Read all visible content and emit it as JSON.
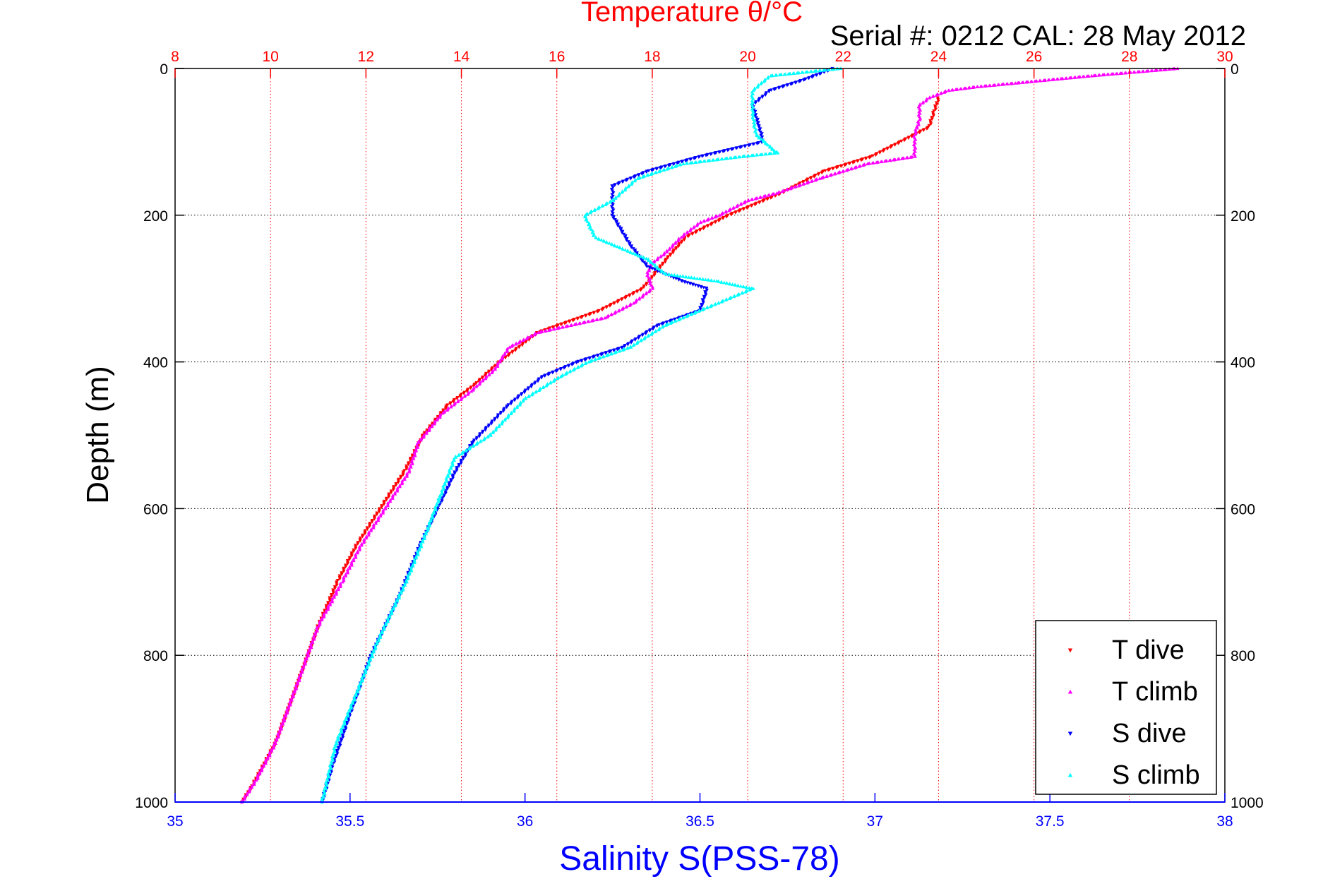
{
  "chart_data": {
    "type": "scatter",
    "title": "Temperature θ/°C",
    "subtitle": "Serial #: 0212  CAL: 28 May 2012",
    "xlabel": "Salinity S(PSS-78)",
    "ylabel": "Depth (m)",
    "x_salinity_lim": [
      35,
      38
    ],
    "x_temperature_lim": [
      8,
      30
    ],
    "ylim": [
      0,
      1000
    ],
    "y_reversed": true,
    "salinity_ticks": [
      "35",
      "35.5",
      "36",
      "36.5",
      "37",
      "37.5",
      "38"
    ],
    "temperature_ticks": [
      "8",
      "10",
      "12",
      "14",
      "16",
      "18",
      "20",
      "22",
      "24",
      "26",
      "28",
      "30"
    ],
    "depth_ticks": [
      "0",
      "200",
      "400",
      "600",
      "800",
      "1000"
    ],
    "grid": true,
    "legend_position": "bottom-right",
    "series": [
      {
        "name": "T dive",
        "axis": "temperature",
        "color": "#ff0000",
        "marker": "triangle-down",
        "points": [
          [
            24.0,
            40
          ],
          [
            23.9,
            60
          ],
          [
            23.8,
            80
          ],
          [
            23.2,
            100
          ],
          [
            22.6,
            120
          ],
          [
            21.6,
            140
          ],
          [
            20.7,
            170
          ],
          [
            19.6,
            200
          ],
          [
            18.7,
            230
          ],
          [
            18.3,
            260
          ],
          [
            17.8,
            300
          ],
          [
            16.9,
            330
          ],
          [
            15.6,
            360
          ],
          [
            14.8,
            400
          ],
          [
            14.3,
            430
          ],
          [
            13.7,
            460
          ],
          [
            13.2,
            500
          ],
          [
            12.8,
            550
          ],
          [
            12.3,
            600
          ],
          [
            11.8,
            650
          ],
          [
            11.4,
            700
          ],
          [
            11.0,
            760
          ],
          [
            10.5,
            850
          ],
          [
            10.1,
            920
          ],
          [
            9.6,
            980
          ],
          [
            9.4,
            1000
          ]
        ]
      },
      {
        "name": "T climb",
        "axis": "temperature",
        "color": "#ff00ff",
        "marker": "triangle-up",
        "points": [
          [
            29.0,
            0
          ],
          [
            27.2,
            10
          ],
          [
            25.6,
            20
          ],
          [
            24.8,
            25
          ],
          [
            24.2,
            30
          ],
          [
            23.8,
            40
          ],
          [
            23.6,
            50
          ],
          [
            23.6,
            70
          ],
          [
            23.5,
            90
          ],
          [
            23.5,
            120
          ],
          [
            22.5,
            130
          ],
          [
            21.5,
            150
          ],
          [
            20.6,
            170
          ],
          [
            20.0,
            180
          ],
          [
            19.4,
            200
          ],
          [
            19.0,
            210
          ],
          [
            18.6,
            230
          ],
          [
            18.3,
            250
          ],
          [
            18.0,
            265
          ],
          [
            17.9,
            280
          ],
          [
            18.0,
            300
          ],
          [
            17.6,
            320
          ],
          [
            17.0,
            340
          ],
          [
            15.6,
            360
          ],
          [
            15.0,
            380
          ],
          [
            14.7,
            410
          ],
          [
            14.2,
            440
          ],
          [
            13.6,
            470
          ],
          [
            13.1,
            510
          ],
          [
            12.9,
            550
          ],
          [
            12.4,
            600
          ],
          [
            11.9,
            650
          ],
          [
            11.5,
            700
          ],
          [
            11.0,
            760
          ],
          [
            10.5,
            850
          ],
          [
            10.1,
            920
          ],
          [
            9.7,
            970
          ],
          [
            9.4,
            1000
          ]
        ]
      },
      {
        "name": "S dive",
        "axis": "salinity",
        "color": "#0000ff",
        "marker": "triangle-down",
        "points": [
          [
            36.88,
            0
          ],
          [
            36.8,
            15
          ],
          [
            36.7,
            30
          ],
          [
            36.65,
            50
          ],
          [
            36.67,
            80
          ],
          [
            36.68,
            100
          ],
          [
            36.5,
            120
          ],
          [
            36.35,
            140
          ],
          [
            36.25,
            160
          ],
          [
            36.25,
            200
          ],
          [
            36.3,
            240
          ],
          [
            36.35,
            270
          ],
          [
            36.45,
            290
          ],
          [
            36.52,
            300
          ],
          [
            36.5,
            330
          ],
          [
            36.38,
            350
          ],
          [
            36.28,
            380
          ],
          [
            36.15,
            400
          ],
          [
            36.05,
            420
          ],
          [
            35.95,
            460
          ],
          [
            35.85,
            510
          ],
          [
            35.8,
            550
          ],
          [
            35.75,
            600
          ],
          [
            35.7,
            650
          ],
          [
            35.64,
            720
          ],
          [
            35.56,
            800
          ],
          [
            35.5,
            880
          ],
          [
            35.45,
            950
          ],
          [
            35.42,
            1000
          ]
        ]
      },
      {
        "name": "S climb",
        "axis": "salinity",
        "color": "#00ffff",
        "marker": "triangle-up",
        "points": [
          [
            36.9,
            0
          ],
          [
            36.7,
            10
          ],
          [
            36.65,
            30
          ],
          [
            36.65,
            60
          ],
          [
            36.66,
            90
          ],
          [
            36.72,
            115
          ],
          [
            36.62,
            120
          ],
          [
            36.45,
            130
          ],
          [
            36.32,
            150
          ],
          [
            36.25,
            180
          ],
          [
            36.17,
            200
          ],
          [
            36.2,
            230
          ],
          [
            36.35,
            260
          ],
          [
            36.4,
            280
          ],
          [
            36.55,
            290
          ],
          [
            36.65,
            300
          ],
          [
            36.55,
            320
          ],
          [
            36.4,
            350
          ],
          [
            36.3,
            380
          ],
          [
            36.18,
            400
          ],
          [
            36.1,
            420
          ],
          [
            36.0,
            450
          ],
          [
            35.9,
            500
          ],
          [
            35.8,
            530
          ],
          [
            35.76,
            580
          ],
          [
            35.72,
            630
          ],
          [
            35.66,
            700
          ],
          [
            35.58,
            780
          ],
          [
            35.52,
            850
          ],
          [
            35.46,
            920
          ],
          [
            35.42,
            1000
          ]
        ]
      }
    ]
  }
}
